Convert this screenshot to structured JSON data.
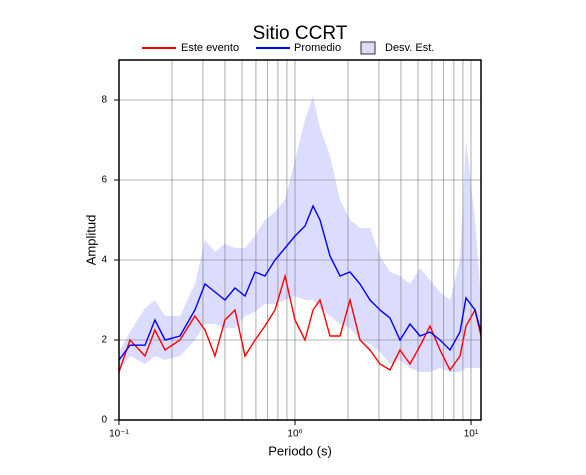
{
  "chart_data": {
    "type": "line",
    "title": "Sitio CCRT",
    "xlabel": "Periodo (s)",
    "ylabel": "Amplitud",
    "log_x": true,
    "grid": true,
    "xlim": [
      0.1,
      11.4
    ],
    "ylim": [
      0,
      9
    ],
    "xticks": [
      {
        "value": 0.1,
        "label": "10⁻¹"
      },
      {
        "value": 1,
        "label": "10⁰"
      },
      {
        "value": 10,
        "label": "10¹"
      }
    ],
    "xminor": [
      0.2,
      0.3,
      0.4,
      0.5,
      0.6,
      0.7,
      0.8,
      0.9,
      2,
      3,
      4,
      5,
      6,
      7,
      8,
      9
    ],
    "yticks": [
      0,
      2,
      4,
      6,
      8
    ],
    "x": [
      0.1,
      0.1155,
      0.1405,
      0.16,
      0.1826,
      0.222,
      0.27,
      0.308,
      0.351,
      0.4,
      0.456,
      0.52,
      0.593,
      0.675,
      0.77,
      0.878,
      1.0,
      1.14,
      1.266,
      1.387,
      1.581,
      1.802,
      2.054,
      2.341,
      2.668,
      3.041,
      3.466,
      3.951,
      4.503,
      5.132,
      5.848,
      6.667,
      7.598,
      8.66,
      9.368,
      10.54,
      11.4
    ],
    "band": {
      "name": "Desv. Est.",
      "color": "#dcdcff",
      "lower": [
        1.2,
        1.6,
        1.4,
        1.6,
        1.5,
        1.6,
        2.0,
        2.4,
        2.4,
        2.3,
        2.3,
        2.6,
        2.7,
        2.9,
        2.9,
        3.0,
        3.1,
        3.0,
        3.0,
        2.8,
        2.6,
        2.4,
        2.3,
        2.0,
        1.9,
        1.7,
        1.4,
        1.5,
        1.3,
        1.2,
        1.2,
        1.3,
        1.2,
        1.2,
        1.3,
        1.3,
        1.3
      ],
      "upper": [
        1.7,
        2.2,
        2.8,
        3.0,
        2.6,
        2.6,
        3.4,
        4.5,
        4.2,
        4.4,
        4.3,
        4.3,
        4.6,
        5.0,
        5.2,
        5.5,
        6.5,
        7.5,
        8.1,
        7.3,
        6.6,
        5.5,
        5.0,
        4.8,
        4.8,
        4.1,
        3.7,
        3.6,
        3.4,
        3.8,
        3.5,
        3.2,
        3.0,
        4.0,
        7.0,
        5.0,
        3.0
      ]
    },
    "series": [
      {
        "name": "Este evento",
        "color": "#ff0000",
        "values": [
          1.2,
          2.0,
          1.6,
          2.25,
          1.75,
          2.0,
          2.6,
          2.25,
          1.6,
          2.5,
          2.75,
          1.6,
          2.0,
          2.35,
          2.75,
          3.6,
          2.5,
          2.0,
          2.75,
          3.0,
          2.1,
          2.1,
          3.0,
          2.0,
          1.75,
          1.4,
          1.25,
          1.75,
          1.4,
          1.85,
          2.35,
          1.75,
          1.25,
          1.6,
          2.35,
          2.75,
          2.1
        ]
      },
      {
        "name": "Promedio",
        "color": "#0000ff",
        "values": [
          1.5,
          1.87,
          1.87,
          2.5,
          2.0,
          2.1,
          2.75,
          3.4,
          3.2,
          3.0,
          3.3,
          3.1,
          3.7,
          3.6,
          4.0,
          4.3,
          4.6,
          4.85,
          5.35,
          5.0,
          4.1,
          3.6,
          3.7,
          3.4,
          3.0,
          2.75,
          2.55,
          2.0,
          2.4,
          2.1,
          2.2,
          2.0,
          1.75,
          2.2,
          3.05,
          2.75,
          2.2
        ]
      }
    ]
  }
}
